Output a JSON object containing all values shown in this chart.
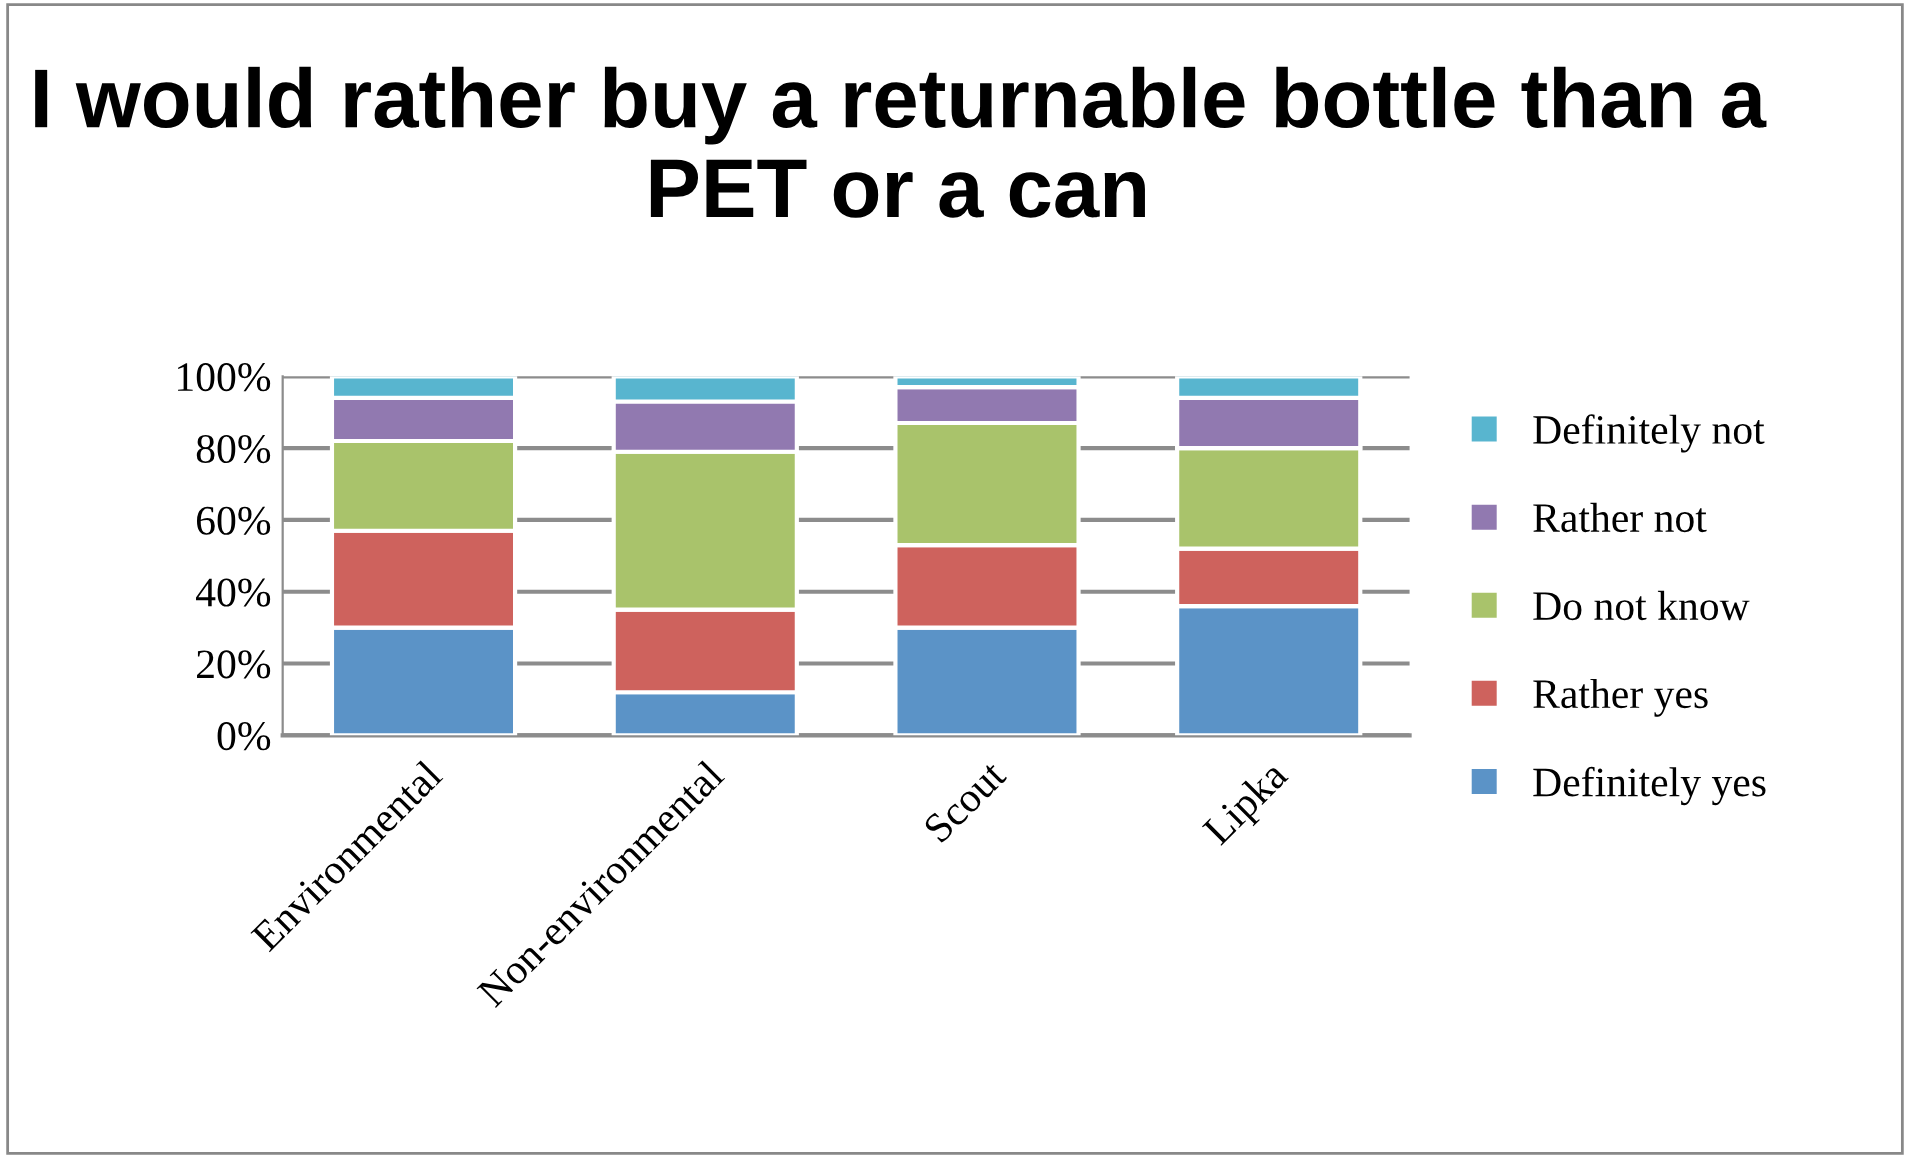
{
  "chart_data": {
    "type": "bar",
    "stacked": true,
    "title": "I would rather buy a returnable bottle than a PET or a can",
    "categories": [
      "Environmental",
      "Non-environmental",
      "Scout",
      "Lipka"
    ],
    "series": [
      {
        "name": "Definitely yes",
        "color": "#5b93c7",
        "values": [
          30,
          12,
          30,
          36
        ]
      },
      {
        "name": "Rather yes",
        "color": "#ce625d",
        "values": [
          27,
          23,
          23,
          16
        ]
      },
      {
        "name": "Do not know",
        "color": "#a9c36b",
        "values": [
          25,
          44,
          34,
          28
        ]
      },
      {
        "name": "Rather not",
        "color": "#9179b0",
        "values": [
          12,
          14,
          10,
          14
        ]
      },
      {
        "name": "Definitely not",
        "color": "#58b5cf",
        "values": [
          6,
          7,
          3,
          6
        ]
      }
    ],
    "ylim": [
      0,
      100
    ],
    "yticks": [
      {
        "value": 0,
        "label": "0%"
      },
      {
        "value": 20,
        "label": "20%"
      },
      {
        "value": 40,
        "label": "40%"
      },
      {
        "value": 60,
        "label": "60%"
      },
      {
        "value": 80,
        "label": "80%"
      },
      {
        "value": 100,
        "label": "100%"
      }
    ],
    "grid": "y",
    "legend": "right"
  }
}
